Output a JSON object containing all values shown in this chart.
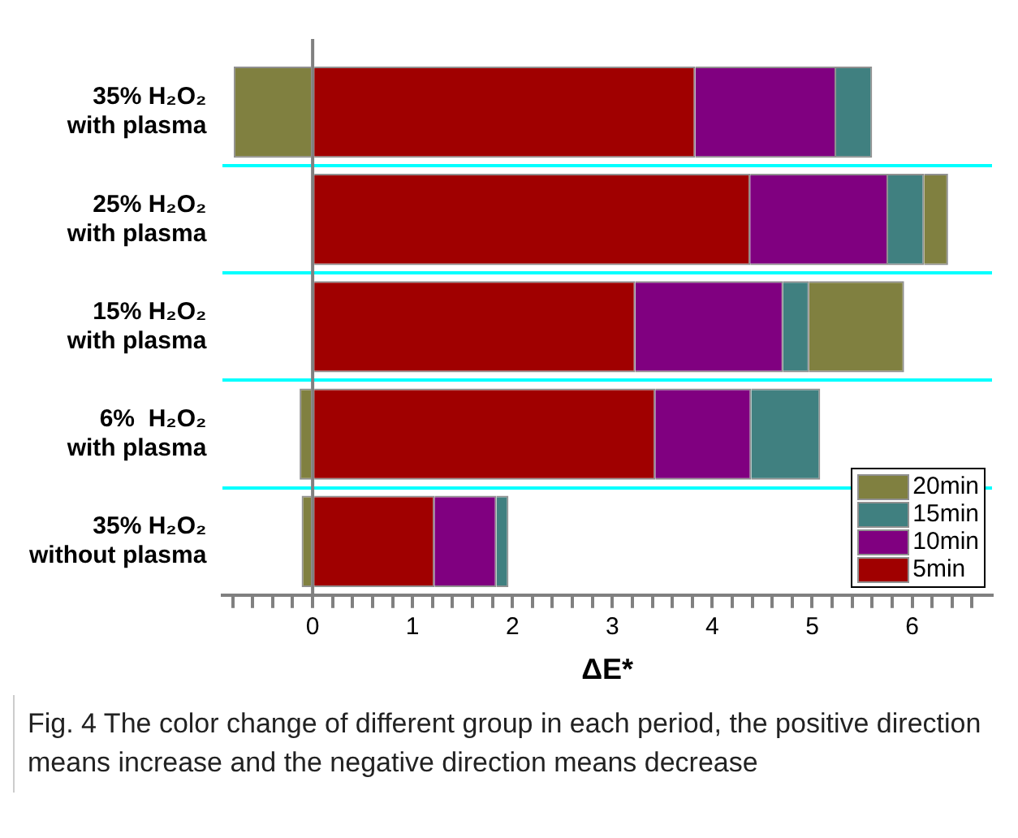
{
  "chart_data": {
    "type": "bar",
    "orientation": "horizontal",
    "stacked": true,
    "categories": [
      "35% H₂O₂\nwith plasma",
      "25% H₂O₂\nwith plasma",
      "15% H₂O₂\nwith plasma",
      "6%  H₂O₂\nwith plasma",
      "35% H₂O₂\nwithout plasma"
    ],
    "series": [
      {
        "name": "5min",
        "color": "#a00000",
        "values": [
          3.83,
          4.38,
          3.23,
          3.43,
          1.22
        ]
      },
      {
        "name": "10min",
        "color": "#800080",
        "values": [
          1.41,
          1.38,
          1.48,
          0.96,
          0.62
        ]
      },
      {
        "name": "15min",
        "color": "#408080",
        "values": [
          0.36,
          0.36,
          0.26,
          0.69,
          0.12
        ]
      },
      {
        "name": "20min",
        "color": "#808040",
        "values": [
          -0.79,
          0.24,
          0.95,
          -0.13,
          -0.11
        ]
      }
    ],
    "xlabel": "ΔE*",
    "xlim": [
      -0.9,
      6.8
    ],
    "xticks": [
      {
        "value": -0.8,
        "label": null
      },
      {
        "value": -0.6,
        "label": null
      },
      {
        "value": -0.4,
        "label": null
      },
      {
        "value": -0.2,
        "label": null
      },
      0,
      {
        "value": 0.2,
        "label": null
      },
      {
        "value": 0.4,
        "label": null
      },
      {
        "value": 0.6,
        "label": null
      },
      {
        "value": 0.8,
        "label": null
      },
      1,
      {
        "value": 1.2,
        "label": null
      },
      {
        "value": 1.4,
        "label": null
      },
      {
        "value": 1.6,
        "label": null
      },
      {
        "value": 1.8,
        "label": null
      },
      2,
      {
        "value": 2.2,
        "label": null
      },
      {
        "value": 2.4,
        "label": null
      },
      {
        "value": 2.6,
        "label": null
      },
      {
        "value": 2.8,
        "label": null
      },
      3,
      {
        "value": 3.2,
        "label": null
      },
      {
        "value": 3.4,
        "label": null
      },
      {
        "value": 3.6,
        "label": null
      },
      {
        "value": 3.8,
        "label": null
      },
      4,
      {
        "value": 4.2,
        "label": null
      },
      {
        "value": 4.4,
        "label": null
      },
      {
        "value": 4.6,
        "label": null
      },
      {
        "value": 4.8,
        "label": null
      },
      5,
      {
        "value": 5.2,
        "label": null
      },
      {
        "value": 5.4,
        "label": null
      },
      {
        "value": 5.6,
        "label": null
      },
      {
        "value": 5.8,
        "label": null
      },
      6,
      {
        "value": 6.2,
        "label": null
      },
      {
        "value": 6.4,
        "label": null
      },
      {
        "value": 6.6,
        "label": null
      }
    ],
    "grid": "y",
    "legend": "bottom right",
    "annotations": [
      "Fig. 4 The color change of different group in each period, the positive direction means increase and the negative direction means decrease"
    ]
  }
}
